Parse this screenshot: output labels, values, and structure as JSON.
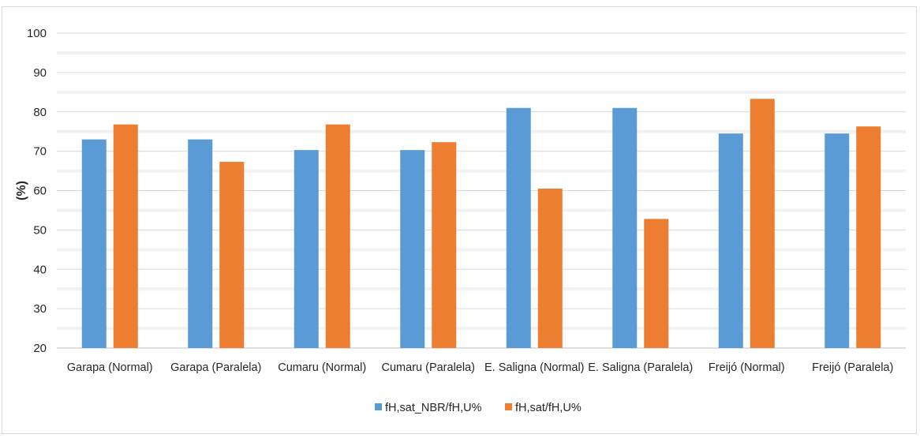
{
  "chart_data": {
    "type": "bar",
    "title": "",
    "xlabel": "",
    "ylabel": "(%)",
    "ylim": [
      20,
      100
    ],
    "yticks": [
      20,
      30,
      40,
      50,
      60,
      70,
      80,
      90,
      100
    ],
    "grid": true,
    "legend_position": "bottom",
    "categories": [
      "Garapa (Normal)",
      "Garapa (Paralela)",
      "Cumaru (Normal)",
      "Cumaru (Paralela)",
      "E. Saligna (Normal)",
      "E. Saligna (Paralela)",
      "Freijó (Normal)",
      "Freijó (Paralela)"
    ],
    "series": [
      {
        "name": "fH,sat_NBR/fH,U%",
        "color": "#5b9bd5",
        "values": [
          73.0,
          73.0,
          70.3,
          70.3,
          81.0,
          81.0,
          74.5,
          74.5
        ]
      },
      {
        "name": "fH,sat/fH,U%",
        "color": "#ed7d31",
        "values": [
          76.8,
          67.3,
          76.8,
          72.3,
          60.5,
          52.8,
          83.3,
          76.3
        ]
      }
    ],
    "colors": {
      "grid": "#d9d9d9",
      "band": "#f2f2f2",
      "axis": "#bfbfbf",
      "text": "#262626"
    }
  }
}
